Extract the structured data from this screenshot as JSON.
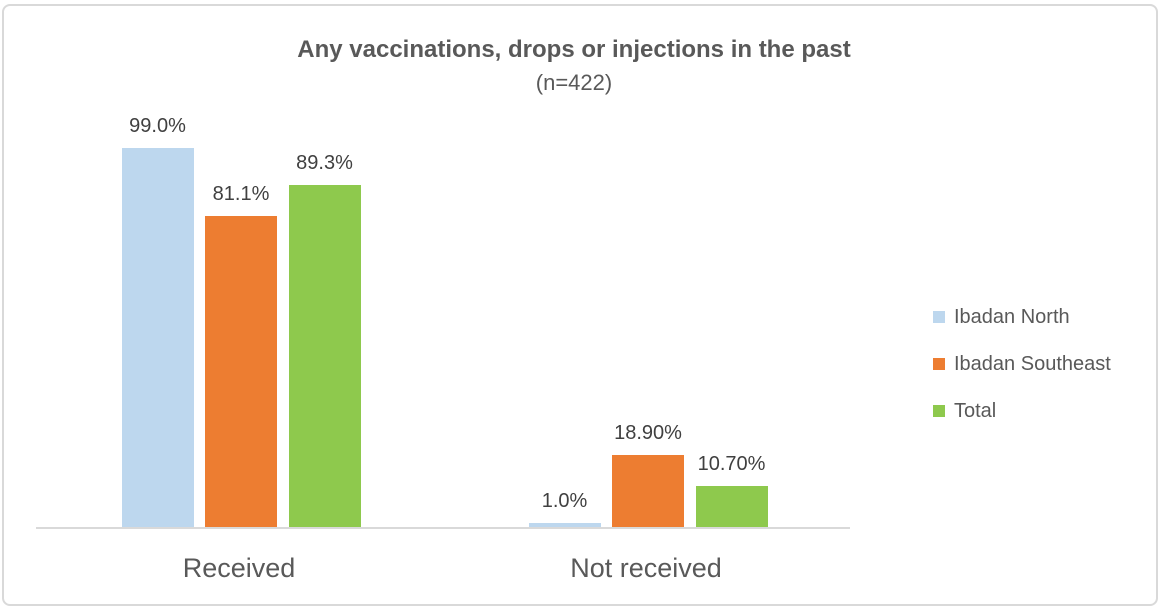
{
  "chart_data": {
    "type": "bar",
    "title": "Any vaccinations, drops or injections in the past",
    "subtitle": "(n=422)",
    "categories": [
      "Received",
      "Not received"
    ],
    "series": [
      {
        "name": "Ibadan North",
        "color": "#BDD7EE",
        "values": [
          99.0,
          1.0
        ],
        "data_labels": [
          "99.0%",
          "1.0%"
        ]
      },
      {
        "name": "Ibadan Southeast",
        "color": "#ED7D31",
        "values": [
          81.1,
          18.9
        ],
        "data_labels": [
          "81.1%",
          "18.90%"
        ]
      },
      {
        "name": "Total",
        "color": "#8EC94D",
        "values": [
          89.3,
          10.7
        ],
        "data_labels": [
          "89.3%",
          "10.70%"
        ]
      }
    ],
    "ylim": [
      0,
      100
    ],
    "grid": false,
    "data_labels_shown": true,
    "legend_position": "right",
    "axis_color": "#D9D9D9",
    "title_color": "#595959",
    "data_label_color": "#404040"
  }
}
